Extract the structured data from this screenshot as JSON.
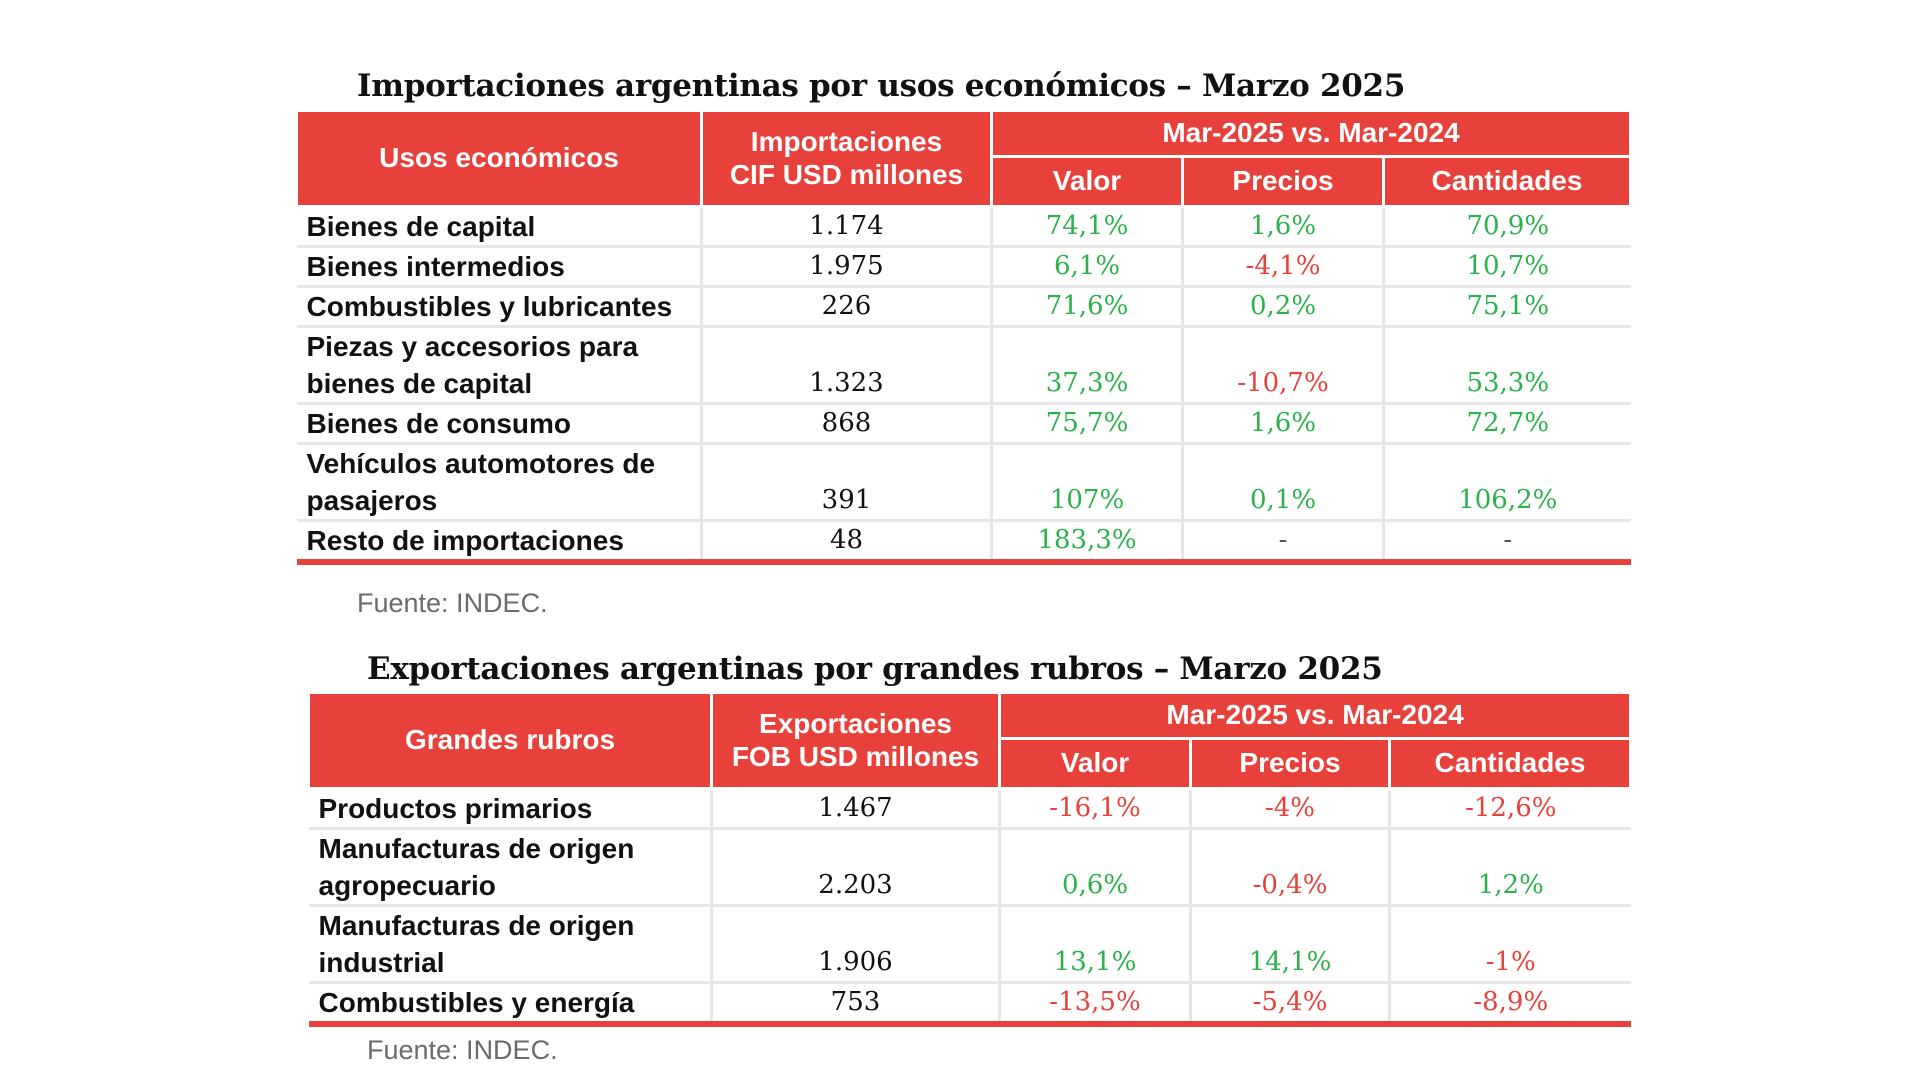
{
  "imports": {
    "title": "Importaciones argentinas por usos económicos – Marzo 2025",
    "headers": {
      "col1": "Usos económicos",
      "col2_line1": "Importaciones",
      "col2_line2": "CIF USD millones",
      "group": "Mar-2025 vs. Mar-2024",
      "valor": "Valor",
      "precios": "Precios",
      "cantidades": "Cantidades"
    },
    "rows": [
      {
        "label_line1": "Bienes de capital",
        "label_line2": "",
        "amount": "1.174",
        "valor": "74,1%",
        "precios": "1,6%",
        "cantidades": "70,9%"
      },
      {
        "label_line1": "Bienes intermedios",
        "label_line2": "",
        "amount": "1.975",
        "valor": "6,1%",
        "precios": "-4,1%",
        "cantidades": "10,7%"
      },
      {
        "label_line1": "Combustibles y lubricantes",
        "label_line2": "",
        "amount": "226",
        "valor": "71,6%",
        "precios": "0,2%",
        "cantidades": "75,1%"
      },
      {
        "label_line1": "Piezas y accesorios para",
        "label_line2": "bienes de capital",
        "amount": "1.323",
        "valor": "37,3%",
        "precios": "-10,7%",
        "cantidades": "53,3%"
      },
      {
        "label_line1": "Bienes de consumo",
        "label_line2": "",
        "amount": "868",
        "valor": "75,7%",
        "precios": "1,6%",
        "cantidades": "72,7%"
      },
      {
        "label_line1": "Vehículos automotores de",
        "label_line2": "pasajeros",
        "amount": "391",
        "valor": "107%",
        "precios": "0,1%",
        "cantidades": "106,2%"
      },
      {
        "label_line1": "Resto de importaciones",
        "label_line2": "",
        "amount": "48",
        "valor": "183,3%",
        "precios": "-",
        "cantidades": "-"
      }
    ],
    "source": "Fuente: INDEC."
  },
  "exports": {
    "title": "Exportaciones argentinas por grandes rubros – Marzo 2025",
    "headers": {
      "col1": "Grandes rubros",
      "col2_line1": "Exportaciones",
      "col2_line2": "FOB USD millones",
      "group": "Mar-2025 vs. Mar-2024",
      "valor": "Valor",
      "precios": "Precios",
      "cantidades": "Cantidades"
    },
    "rows": [
      {
        "label_line1": "Productos primarios",
        "label_line2": "",
        "amount": "1.467",
        "valor": "-16,1%",
        "precios": "-4%",
        "cantidades": "-12,6%"
      },
      {
        "label_line1": "Manufacturas de origen",
        "label_line2": "agropecuario",
        "amount": "2.203",
        "valor": "0,6%",
        "precios": "-0,4%",
        "cantidades": "1,2%"
      },
      {
        "label_line1": "Manufacturas de origen",
        "label_line2": "industrial",
        "amount": "1.906",
        "valor": "13,1%",
        "precios": "14,1%",
        "cantidades": "-1%"
      },
      {
        "label_line1": "Combustibles y energía",
        "label_line2": "",
        "amount": "753",
        "valor": "-13,5%",
        "precios": "-5,4%",
        "cantidades": "-8,9%"
      }
    ],
    "source": "Fuente: INDEC."
  },
  "colors": {
    "header_red": "#e8403a",
    "positive_green": "#2bb24c",
    "negative_red": "#e8403a"
  }
}
